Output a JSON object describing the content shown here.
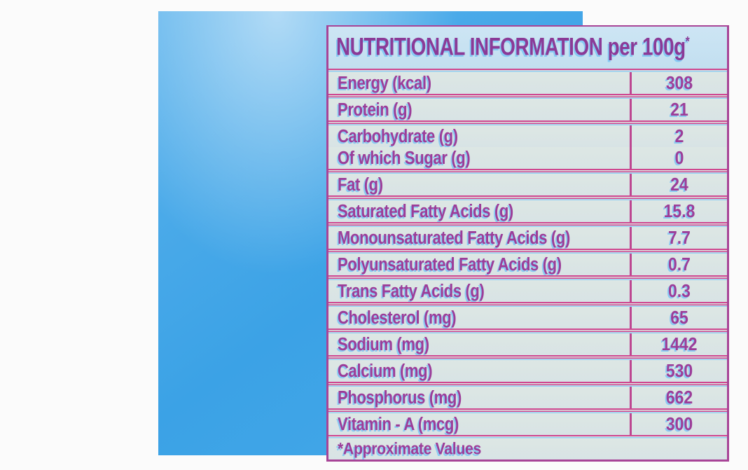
{
  "label": {
    "title": "NUTRITIONAL INFORMATION per 100g",
    "title_superscript": "*",
    "rows": [
      {
        "label": "Energy (kcal)",
        "value": "308"
      },
      {
        "label": "Protein (g)",
        "value": "21"
      },
      {
        "label": "Carbohydrate (g)",
        "value": "2"
      },
      {
        "label": "Of which Sugar (g)",
        "value": "0"
      },
      {
        "label": "Fat (g)",
        "value": "24"
      },
      {
        "label": "Saturated Fatty Acids (g)",
        "value": "15.8"
      },
      {
        "label": "Monounsaturated Fatty Acids (g)",
        "value": "7.7"
      },
      {
        "label": "Polyunsaturated Fatty Acids (g)",
        "value": "0.7"
      },
      {
        "label": "Trans Fatty Acids (g)",
        "value": "0.3"
      },
      {
        "label": "Cholesterol (mg)",
        "value": "65"
      },
      {
        "label": "Sodium (mg)",
        "value": "1442"
      },
      {
        "label": "Calcium (mg)",
        "value": "530"
      },
      {
        "label": "Phosphorus (mg)",
        "value": "662"
      },
      {
        "label": "Vitamin - A (mcg)",
        "value": "300"
      }
    ],
    "footnote": "*Approximate Values"
  },
  "colors": {
    "package_blue": "#42a7e8",
    "rule_magenta": "#cf4690",
    "outer_border_purple": "#a84497",
    "text_purple": "#9c3d99",
    "offset_shadow_cyan": "#93cff3",
    "header_bg": "#c8e2f1",
    "cell_bg": "#dce5e1",
    "backdrop_white": "#fbfbfb"
  }
}
